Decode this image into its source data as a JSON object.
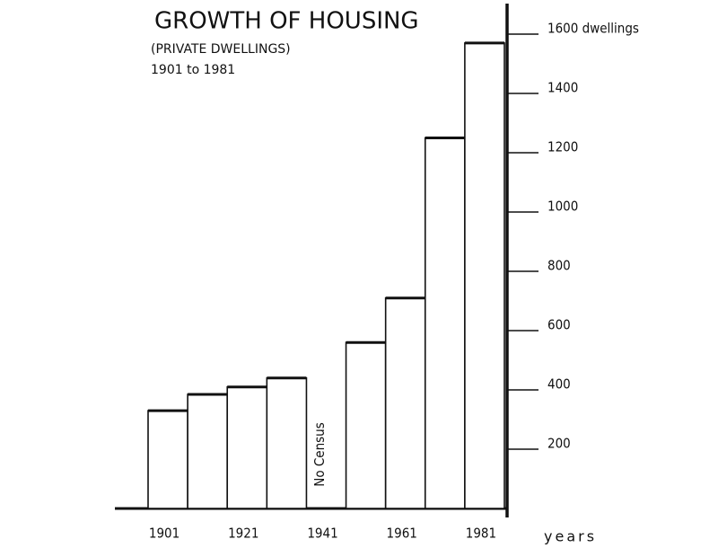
{
  "chart_data": {
    "type": "bar",
    "title": "GROWTH OF HOUSING",
    "subtitle": [
      "(PRIVATE DWELLINGS)",
      "1901 to 1981"
    ],
    "x_label": "years",
    "annotation": "No Census",
    "categories": [
      "1901",
      null,
      "1921",
      null,
      "1941",
      null,
      "1961",
      null,
      "1981"
    ],
    "values": [
      330,
      385,
      410,
      440,
      null,
      560,
      710,
      1250,
      1570
    ],
    "color": "#ffffff",
    "ylim": [
      0,
      1700
    ],
    "yticks": [
      200,
      400,
      600,
      800,
      1000,
      1200,
      1400,
      {
        "value": 1600,
        "label": "1600 dwellings"
      }
    ],
    "grid": false
  }
}
